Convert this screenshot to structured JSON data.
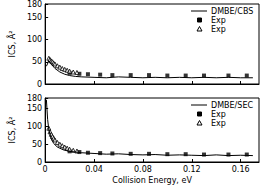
{
  "chart_data": [
    {
      "type": "line",
      "y_label": "ICS, Å²",
      "tick_labels": "y",
      "xlim": [
        0,
        0.175
      ],
      "xticks": [
        0,
        0.04,
        0.08,
        0.12,
        0.16
      ],
      "ylim": [
        0,
        180
      ],
      "yticks": [
        0,
        50,
        100,
        150
      ],
      "legend": "upper right",
      "series": [
        {
          "name": "DMBE/CBS",
          "type": "line",
          "marker": "none",
          "line_style": "solid",
          "color": "#000000",
          "x": [
            0.001,
            0.003,
            0.005,
            0.008,
            0.012,
            0.016,
            0.02,
            0.025,
            0.03,
            0.04,
            0.05,
            0.06,
            0.07,
            0.08,
            0.09,
            0.1,
            0.11,
            0.12,
            0.13,
            0.14,
            0.15,
            0.16,
            0.17
          ],
          "values": [
            40,
            52,
            45,
            35,
            27,
            22,
            19,
            17,
            16,
            15,
            14,
            16,
            15,
            14,
            15,
            14,
            15,
            14,
            15,
            14,
            15,
            14,
            14
          ]
        },
        {
          "name": "Exp",
          "type": "scatter",
          "marker": "square",
          "color": "#000000",
          "x": [
            0.02,
            0.028,
            0.035,
            0.045,
            0.055,
            0.07,
            0.085,
            0.1,
            0.115,
            0.13,
            0.15,
            0.165
          ],
          "values": [
            25,
            23,
            22,
            21,
            20,
            20,
            20,
            19,
            19,
            19,
            19,
            19
          ]
        },
        {
          "name": "Exp",
          "type": "scatter",
          "marker": "open_triangle",
          "color": "#000000",
          "x": [
            0.003,
            0.004,
            0.005,
            0.006,
            0.007,
            0.008,
            0.01,
            0.012,
            0.014,
            0.016,
            0.018,
            0.02,
            0.023,
            0.026
          ],
          "values": [
            58,
            55,
            52,
            50,
            47,
            45,
            41,
            38,
            35,
            33,
            31,
            29,
            27,
            26
          ]
        }
      ]
    },
    {
      "type": "line",
      "x_label": "Collision Energy, eV",
      "y_label": "ICS, Å²",
      "tick_labels": true,
      "xlim": [
        0,
        0.175
      ],
      "xticks": [
        0,
        0.04,
        0.08,
        0.12,
        0.16
      ],
      "ylim": [
        0,
        180
      ],
      "yticks": [
        0,
        50,
        100,
        150
      ],
      "legend": "upper right",
      "series": [
        {
          "name": "DMBE/SEC",
          "type": "line",
          "marker": "none",
          "line_style": "solid",
          "color": "#000000",
          "x": [
            0.001,
            0.002,
            0.003,
            0.005,
            0.007,
            0.01,
            0.015,
            0.02,
            0.03,
            0.04,
            0.05,
            0.06,
            0.07,
            0.08,
            0.09,
            0.1,
            0.11,
            0.12,
            0.13,
            0.14,
            0.15,
            0.16,
            0.17
          ],
          "values": [
            175,
            120,
            90,
            65,
            52,
            42,
            34,
            30,
            26,
            24,
            22,
            23,
            21,
            20,
            21,
            19,
            20,
            19,
            18,
            20,
            18,
            19,
            18
          ]
        },
        {
          "name": "Exp",
          "type": "scatter",
          "marker": "square",
          "color": "#000000",
          "x": [
            0.02,
            0.028,
            0.035,
            0.045,
            0.055,
            0.07,
            0.085,
            0.1,
            0.115,
            0.13,
            0.15,
            0.165
          ],
          "values": [
            30,
            28,
            26,
            25,
            24,
            23,
            23,
            22,
            22,
            21,
            21,
            21
          ]
        },
        {
          "name": "Exp",
          "type": "scatter",
          "marker": "open_triangle",
          "color": "#000000",
          "x": [
            0.003,
            0.004,
            0.005,
            0.006,
            0.007,
            0.008,
            0.01,
            0.012,
            0.014,
            0.016,
            0.018,
            0.02,
            0.023,
            0.026
          ],
          "values": [
            95,
            85,
            78,
            72,
            67,
            62,
            55,
            50,
            46,
            42,
            39,
            36,
            33,
            31
          ]
        }
      ]
    }
  ]
}
